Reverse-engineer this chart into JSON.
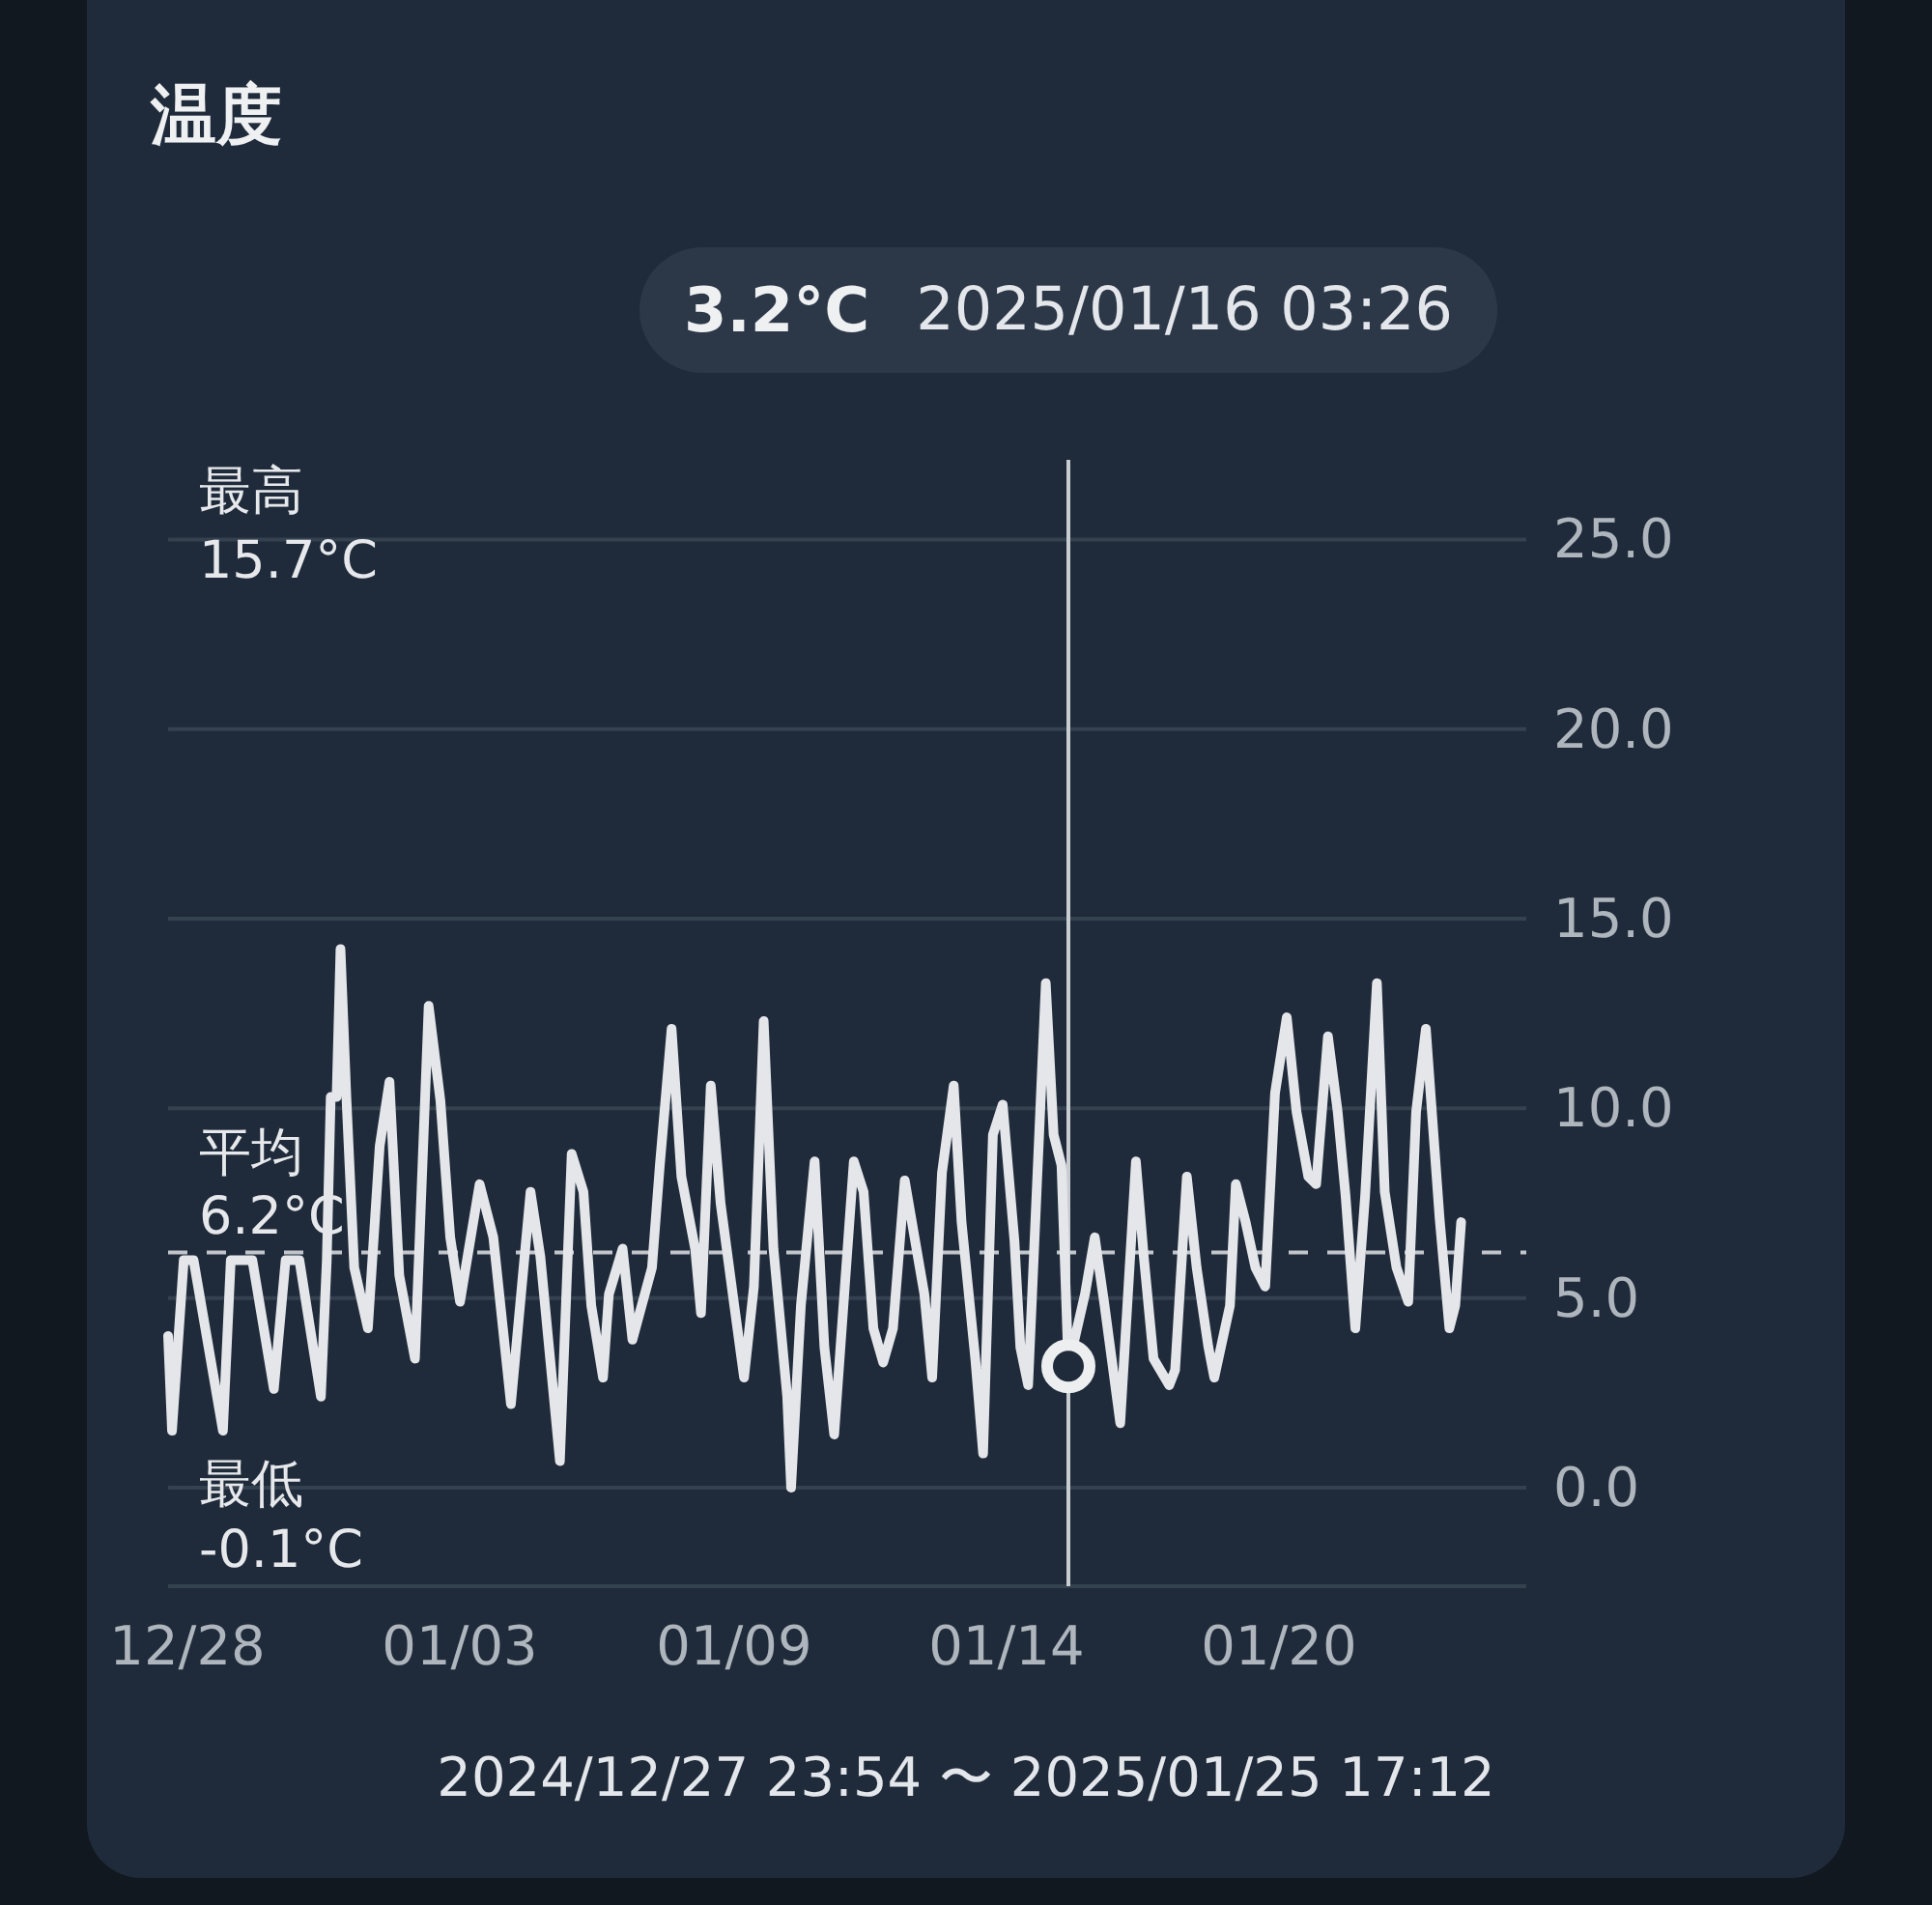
{
  "chart_data": {
    "type": "line",
    "title": "温度",
    "series": [
      {
        "color": "#e4e6ea",
        "x": [
          "2024-12-27T23:54",
          "2024-12-28T01:54",
          "2024-12-28T07:54",
          "2024-12-28T12:54",
          "2024-12-29T03:54",
          "2024-12-29T07:54",
          "2024-12-29T18:54",
          "2024-12-30T05:54",
          "2024-12-30T11:54",
          "2024-12-30T18:54",
          "2024-12-31T05:54",
          "2024-12-31T08:54",
          "2024-12-31T10:54",
          "2024-12-31T13:54",
          "2024-12-31T15:54",
          "2024-12-31T18:54",
          "2024-12-31T22:54",
          "2025-01-01T05:54",
          "2025-01-01T11:54",
          "2025-01-01T16:54",
          "2025-01-01T21:54",
          "2025-01-02T05:54",
          "2025-01-02T12:54",
          "2025-01-02T18:54",
          "2025-01-02T23:54",
          "2025-01-03T04:54",
          "2025-01-03T14:54",
          "2025-01-03T21:54",
          "2025-01-04T06:54",
          "2025-01-04T16:54",
          "2025-01-04T21:54",
          "2025-01-05T07:54",
          "2025-01-05T13:54",
          "2025-01-05T19:54",
          "2025-01-05T23:54",
          "2025-01-06T05:54",
          "2025-01-06T08:54",
          "2025-01-06T15:54",
          "2025-01-06T20:54",
          "2025-01-07T06:54",
          "2025-01-07T10:54",
          "2025-01-07T16:54",
          "2025-01-07T21:54",
          "2025-01-08T04:54",
          "2025-01-08T07:54",
          "2025-01-08T12:54",
          "2025-01-08T17:54",
          "2025-01-09T00:54",
          "2025-01-09T05:54",
          "2025-01-09T10:54",
          "2025-01-09T15:54",
          "2025-01-09T20:54",
          "2025-01-10T03:54",
          "2025-01-10T05:54",
          "2025-01-10T10:54",
          "2025-01-10T17:54",
          "2025-01-10T22:54",
          "2025-01-11T03:54",
          "2025-01-11T13:54",
          "2025-01-11T18:54",
          "2025-01-11T23:54",
          "2025-01-12T04:54",
          "2025-01-12T09:54",
          "2025-01-12T15:54",
          "2025-01-12T20:54",
          "2025-01-13T01:54",
          "2025-01-13T05:54",
          "2025-01-13T10:54",
          "2025-01-13T16:54",
          "2025-01-13T20:54",
          "2025-01-14T03:54",
          "2025-01-14T07:54",
          "2025-01-14T12:54",
          "2025-01-14T17:54",
          "2025-01-14T23:54",
          "2025-01-15T02:54",
          "2025-01-15T06:54",
          "2025-01-15T15:54",
          "2025-01-15T19:54",
          "2025-01-15T23:54",
          "2025-01-16T03:26",
          "2025-01-16T11:54",
          "2025-01-16T16:54",
          "2025-01-16T21:54",
          "2025-01-17T05:54",
          "2025-01-17T13:54",
          "2025-01-17T17:54",
          "2025-01-17T22:54",
          "2025-01-18T06:54",
          "2025-01-18T09:54",
          "2025-01-18T15:54",
          "2025-01-18T20:54",
          "2025-01-19T02:54",
          "2025-01-19T05:54",
          "2025-01-19T13:54",
          "2025-01-19T16:54",
          "2025-01-19T21:54",
          "2025-01-20T02:54",
          "2025-01-20T07:54",
          "2025-01-20T12:54",
          "2025-01-20T18:54",
          "2025-01-20T23:54",
          "2025-01-21T05:54",
          "2025-01-21T09:54",
          "2025-01-21T15:54",
          "2025-01-21T20:54",
          "2025-01-22T00:54",
          "2025-01-22T05:54",
          "2025-01-22T10:54",
          "2025-01-22T16:54",
          "2025-01-22T20:54",
          "2025-01-23T02:54",
          "2025-01-23T08:54",
          "2025-01-23T12:54",
          "2025-01-23T17:54",
          "2025-01-24T00:54",
          "2025-01-24T05:54",
          "2025-01-24T08:54",
          "2025-01-24T11:54"
        ],
        "values": [
          4.0,
          1.5,
          6.0,
          6.0,
          1.5,
          6.0,
          6.0,
          2.6,
          6.0,
          6.0,
          2.4,
          6.0,
          10.3,
          10.3,
          14.2,
          10.3,
          5.8,
          4.2,
          9.0,
          10.7,
          5.6,
          3.4,
          12.7,
          10.2,
          6.6,
          4.9,
          8.0,
          6.6,
          2.2,
          7.8,
          6.1,
          0.7,
          8.8,
          7.8,
          4.8,
          2.9,
          5.1,
          6.3,
          3.9,
          5.8,
          8.5,
          12.1,
          8.2,
          6.3,
          4.6,
          10.6,
          7.5,
          4.8,
          2.9,
          5.3,
          12.3,
          6.3,
          2.4,
          0.0,
          4.8,
          8.6,
          3.7,
          1.4,
          8.6,
          7.8,
          4.2,
          3.3,
          4.2,
          8.1,
          6.6,
          5.1,
          2.9,
          8.3,
          10.6,
          7.0,
          3.4,
          0.9,
          9.3,
          10.1,
          6.5,
          3.7,
          2.7,
          13.3,
          9.3,
          8.5,
          3.2,
          5.1,
          6.6,
          4.8,
          1.7,
          8.6,
          6.1,
          3.4,
          2.7,
          3.1,
          8.2,
          5.8,
          3.7,
          2.9,
          4.8,
          8.0,
          7.0,
          5.8,
          5.3,
          10.4,
          12.4,
          9.9,
          8.2,
          8.0,
          11.9,
          9.9,
          7.7,
          4.2,
          7.7,
          13.3,
          7.8,
          5.8,
          4.9,
          9.9,
          12.1,
          7.1,
          4.2,
          4.8,
          7.0
        ]
      },
      {
        "type": "scatter",
        "color": "#eceef0",
        "marker": "circle",
        "x": [
          "2025-01-16T03:26"
        ],
        "values": [
          3.2
        ]
      }
    ],
    "xlim": [
      "2024-12-27T23:54",
      "2025-01-25T21:09"
    ],
    "xticks": [
      {
        "value": "2024-12-28T09:46",
        "label": "12/28"
      },
      {
        "value": "2025-01-03T04:47",
        "label": "01/03"
      },
      {
        "value": "2025-01-09T00:48",
        "label": "01/09"
      },
      {
        "value": "2025-01-14T19:49",
        "label": "01/14"
      },
      {
        "value": "2025-01-20T14:51",
        "label": "01/20"
      }
    ],
    "ylim": [
      -2.6,
      27.1
    ],
    "yticks": [
      {
        "value": 0,
        "label": "0.0"
      },
      {
        "value": 5,
        "label": "5.0"
      },
      {
        "value": 10,
        "label": "10.0"
      },
      {
        "value": 15,
        "label": "15.0"
      },
      {
        "value": 20,
        "label": "20.0"
      },
      {
        "value": 25,
        "label": "25.0"
      }
    ],
    "grid": "y",
    "ref_lines": [
      {
        "axis": "y",
        "value": 6.2,
        "label": "平均\n6.2°C",
        "color": "#c2c6cb",
        "line_style": "dashed"
      },
      {
        "axis": "x",
        "value": "2025-01-16T03:26",
        "color": "#c9cdd2",
        "line_style": "solid"
      }
    ],
    "annotations": [
      "3.2°C",
      "2025/01/16 03:26",
      "最高\n15.7°C",
      "最低\n-0.1°C",
      "2024/12/27 23:54 〜 2025/01/25 17:12"
    ]
  }
}
